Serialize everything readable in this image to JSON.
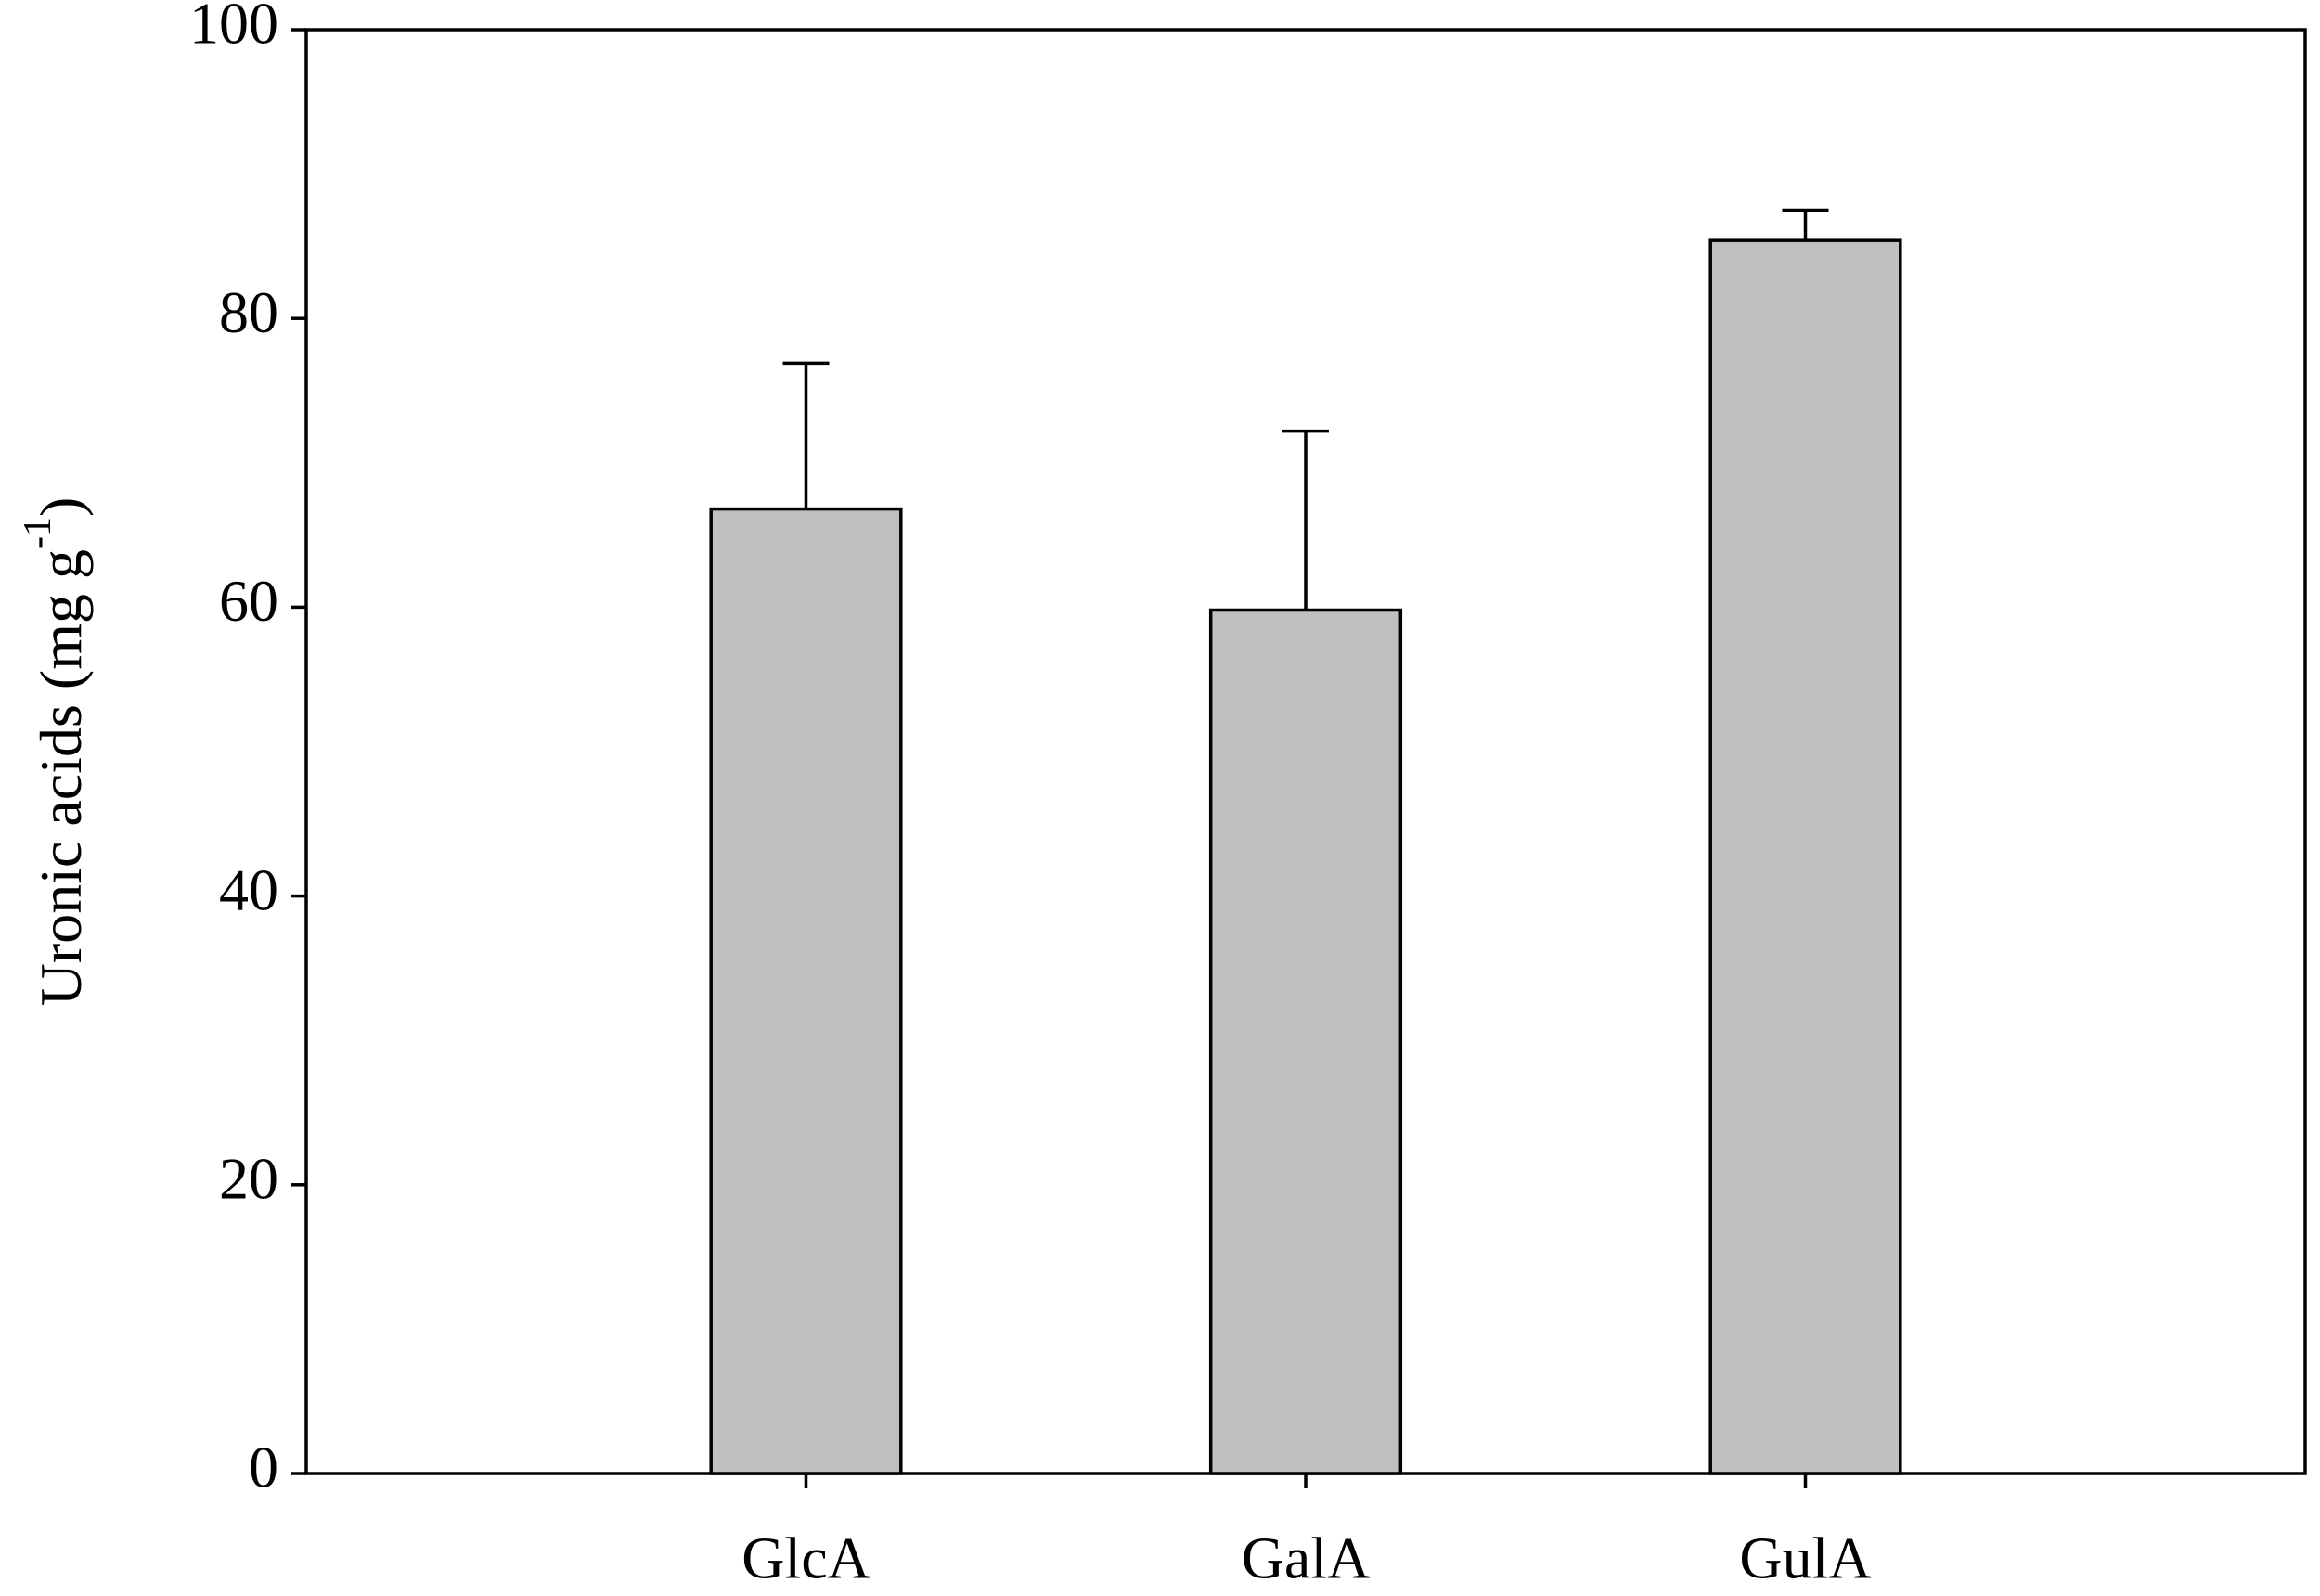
{
  "chart_data": {
    "type": "bar",
    "ylabel": "Uronic acids (mg g",
    "ylabel_superscript": "-1",
    "ylabel_end": ")",
    "categories": [
      "GlcA",
      "GalA",
      "GulA"
    ],
    "values": [
      66.8,
      59.8,
      85.4
    ],
    "errors": [
      10.1,
      12.4,
      2.1
    ],
    "color": "#c0c0c0",
    "ylim": [
      0,
      100
    ],
    "yticks": [
      0,
      20,
      40,
      60,
      80,
      100
    ],
    "grid": false
  }
}
